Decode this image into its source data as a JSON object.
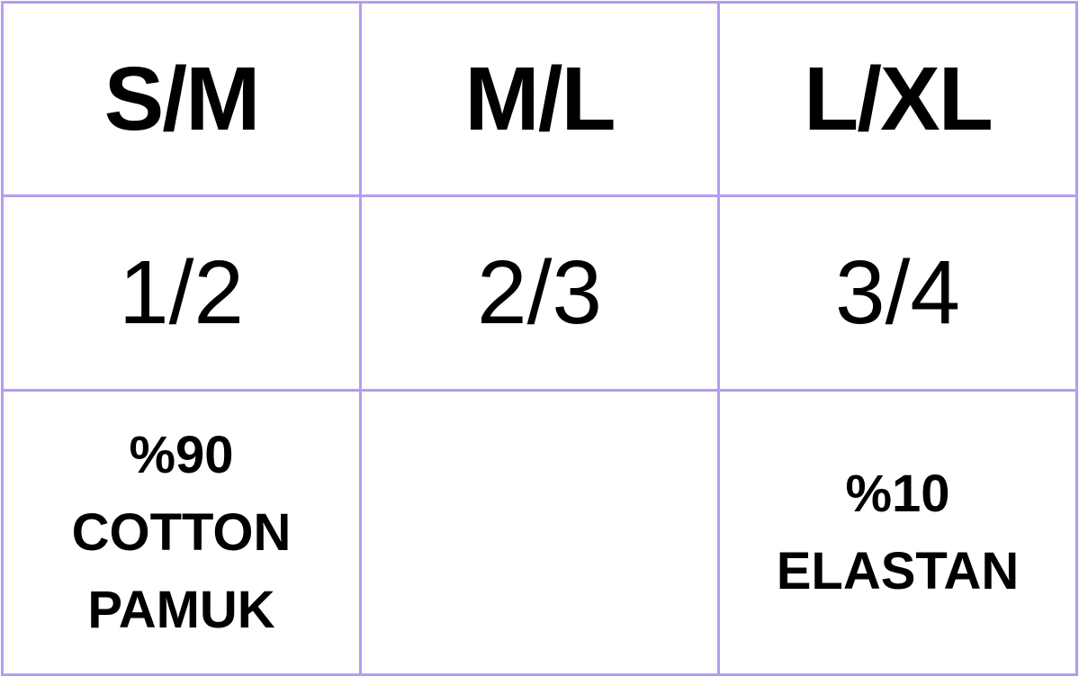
{
  "border_color": "#b69cf0",
  "sizes": [
    "S/M",
    "M/L",
    "L/XL"
  ],
  "fits": [
    "1/2",
    "2/3",
    "3/4"
  ],
  "materials": [
    {
      "lines": [
        "%90",
        "COTTON",
        "PAMUK"
      ]
    },
    {
      "lines": []
    },
    {
      "lines": [
        "%10",
        "ELASTAN"
      ]
    }
  ]
}
